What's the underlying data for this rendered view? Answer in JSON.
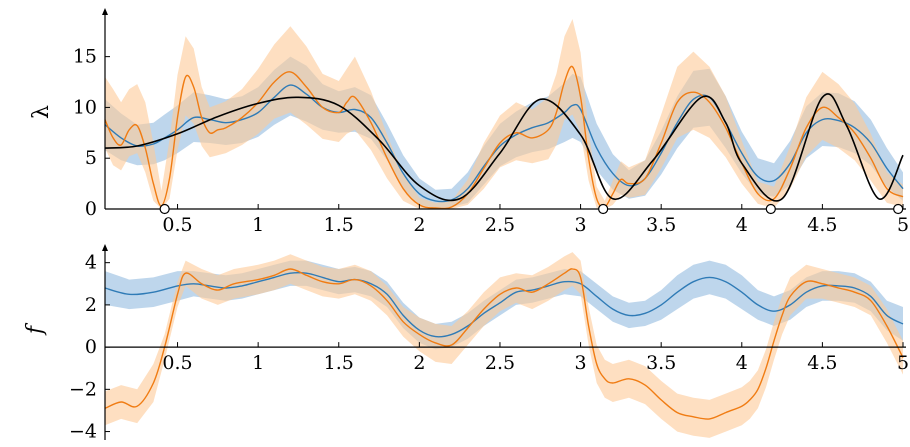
{
  "chart_data": [
    {
      "type": "line",
      "ylabel": "λ",
      "xlim": [
        0.05,
        5.0
      ],
      "ylim": [
        0,
        19
      ],
      "x_ticks": [
        "0.5",
        "1",
        "1.5",
        "2",
        "2.5",
        "3",
        "3.5",
        "4",
        "4.5",
        "5"
      ],
      "y_ticks": [
        "0",
        "5",
        "10",
        "15"
      ],
      "grid": false,
      "series": [
        {
          "role": "model-1-mean",
          "color": "#2f7bb6",
          "band_color": "#a8c8e6",
          "x": [
            0.05,
            0.15,
            0.25,
            0.35,
            0.42,
            0.5,
            0.6,
            0.7,
            0.8,
            0.9,
            1.0,
            1.1,
            1.2,
            1.3,
            1.4,
            1.5,
            1.6,
            1.7,
            1.8,
            1.9,
            2.0,
            2.1,
            2.2,
            2.3,
            2.4,
            2.5,
            2.6,
            2.7,
            2.8,
            2.9,
            2.95,
            3.0,
            3.1,
            3.2,
            3.3,
            3.4,
            3.5,
            3.6,
            3.7,
            3.8,
            3.9,
            4.0,
            4.1,
            4.2,
            4.3,
            4.4,
            4.5,
            4.6,
            4.7,
            4.8,
            4.9,
            5.0
          ],
          "y": [
            8.3,
            7.0,
            6.2,
            6.4,
            7.0,
            7.8,
            9.0,
            8.8,
            8.5,
            8.8,
            9.5,
            11.0,
            12.2,
            11.3,
            10.0,
            9.5,
            9.8,
            9.0,
            6.5,
            3.5,
            1.5,
            0.8,
            0.9,
            2.0,
            4.2,
            6.2,
            7.3,
            8.0,
            8.5,
            9.5,
            10.2,
            9.8,
            6.0,
            3.5,
            2.3,
            3.0,
            5.5,
            8.5,
            10.8,
            11.0,
            8.5,
            5.5,
            3.2,
            2.8,
            4.5,
            7.5,
            8.8,
            8.7,
            8.0,
            6.5,
            4.0,
            2.0
          ],
          "band_lower": [
            5.8,
            4.8,
            4.3,
            4.4,
            4.8,
            5.5,
            6.6,
            6.5,
            6.3,
            6.5,
            7.1,
            8.3,
            9.2,
            8.6,
            7.8,
            7.5,
            7.6,
            6.9,
            4.8,
            2.0,
            0.4,
            0.1,
            0.2,
            0.6,
            2.4,
            4.2,
            5.1,
            5.6,
            5.9,
            6.6,
            7.0,
            6.6,
            3.8,
            1.9,
            1.0,
            1.3,
            3.4,
            6.0,
            8.0,
            8.2,
            6.0,
            3.5,
            1.5,
            1.2,
            2.4,
            5.0,
            6.2,
            6.1,
            5.5,
            4.3,
            2.2,
            0.8
          ],
          "band_upper": [
            10.8,
            9.4,
            8.3,
            8.5,
            9.3,
            10.2,
            11.5,
            11.2,
            10.8,
            11.1,
            12.0,
            13.7,
            15.0,
            14.1,
            12.3,
            11.6,
            12.0,
            11.2,
            8.4,
            5.3,
            3.0,
            1.9,
            2.0,
            3.6,
            6.2,
            8.4,
            9.6,
            10.5,
            11.1,
            12.4,
            13.3,
            13.0,
            8.4,
            5.4,
            3.8,
            4.8,
            7.7,
            11.1,
            13.6,
            13.8,
            11.1,
            7.6,
            5.0,
            4.5,
            6.7,
            10.1,
            11.5,
            11.4,
            10.6,
            8.8,
            6.0,
            3.6
          ]
        },
        {
          "role": "model-2-mean",
          "color": "#f07c13",
          "band_color": "#fdc998",
          "x": [
            0.05,
            0.1,
            0.15,
            0.2,
            0.25,
            0.3,
            0.35,
            0.4,
            0.45,
            0.5,
            0.55,
            0.6,
            0.65,
            0.7,
            0.75,
            0.8,
            0.9,
            1.0,
            1.1,
            1.2,
            1.3,
            1.4,
            1.5,
            1.55,
            1.6,
            1.7,
            1.8,
            1.9,
            2.0,
            2.1,
            2.2,
            2.3,
            2.4,
            2.5,
            2.6,
            2.7,
            2.8,
            2.85,
            2.9,
            2.95,
            3.0,
            3.05,
            3.1,
            3.15,
            3.2,
            3.25,
            3.3,
            3.4,
            3.5,
            3.6,
            3.7,
            3.8,
            3.9,
            4.0,
            4.1,
            4.2,
            4.3,
            4.4,
            4.5,
            4.6,
            4.7,
            4.8,
            4.9,
            5.0
          ],
          "y": [
            8.8,
            7.0,
            6.3,
            7.8,
            8.2,
            6.0,
            2.5,
            0.3,
            3.0,
            9.0,
            13.0,
            12.0,
            9.0,
            7.5,
            7.8,
            8.0,
            9.0,
            10.5,
            12.5,
            13.5,
            12.0,
            10.0,
            9.5,
            10.5,
            11.0,
            8.5,
            5.0,
            2.0,
            0.4,
            0.1,
            0.2,
            1.5,
            4.0,
            6.5,
            7.5,
            7.0,
            7.8,
            9.5,
            12.5,
            14.0,
            11.0,
            5.0,
            1.0,
            0.2,
            1.5,
            2.9,
            2.5,
            3.0,
            6.5,
            10.5,
            11.5,
            10.5,
            8.0,
            4.5,
            1.5,
            1.0,
            4.0,
            8.0,
            10.0,
            9.0,
            7.5,
            5.0,
            2.0,
            1.2
          ],
          "band_lower": [
            6.0,
            4.3,
            3.8,
            5.2,
            5.5,
            3.6,
            0.8,
            0.0,
            1.0,
            5.8,
            9.2,
            8.4,
            6.2,
            5.1,
            5.3,
            5.5,
            6.3,
            7.4,
            8.9,
            9.5,
            8.3,
            6.9,
            6.6,
            7.4,
            7.8,
            5.8,
            3.0,
            0.8,
            0.0,
            0.0,
            0.0,
            0.4,
            2.0,
            4.1,
            4.8,
            4.5,
            4.9,
            6.3,
            8.8,
            9.3,
            7.5,
            2.8,
            0.1,
            0.0,
            0.4,
            1.4,
            1.1,
            1.4,
            4.0,
            7.0,
            7.8,
            7.0,
            5.1,
            2.5,
            0.5,
            0.1,
            2.0,
            5.2,
            6.8,
            6.0,
            4.8,
            2.8,
            0.6,
            0.2
          ],
          "band_upper": [
            13.0,
            11.8,
            10.5,
            11.8,
            12.3,
            10.5,
            6.5,
            1.8,
            6.8,
            13.2,
            17.0,
            15.8,
            12.0,
            10.0,
            10.3,
            10.6,
            11.8,
            13.8,
            16.2,
            18.0,
            16.0,
            13.3,
            12.6,
            13.8,
            15.0,
            11.6,
            7.3,
            3.5,
            1.1,
            0.6,
            0.8,
            2.9,
            6.5,
            9.2,
            10.5,
            9.8,
            11.0,
            13.3,
            17.0,
            18.7,
            15.4,
            7.7,
            2.2,
            0.8,
            2.8,
            4.7,
            4.1,
            4.8,
            9.3,
            14.0,
            15.5,
            14.0,
            11.1,
            6.7,
            2.7,
            2.2,
            6.2,
            11.0,
            13.5,
            12.3,
            10.4,
            7.4,
            3.6,
            2.4
          ]
        },
        {
          "role": "true-function",
          "color": "#000000",
          "x": [
            0.05,
            0.25,
            0.5,
            0.75,
            1.0,
            1.25,
            1.5,
            1.75,
            2.0,
            2.25,
            2.5,
            2.75,
            3.0,
            3.2,
            3.45,
            3.75,
            3.9,
            4.0,
            4.25,
            4.5,
            4.65,
            4.85,
            5.0
          ],
          "y": [
            6.0,
            6.2,
            7.4,
            9.1,
            10.4,
            11.0,
            10.2,
            6.8,
            2.3,
            1.0,
            5.5,
            10.8,
            7.3,
            1.0,
            4.8,
            11.0,
            8.5,
            4.5,
            1.0,
            11.0,
            8.2,
            1.0,
            5.3
          ]
        }
      ],
      "markers": [
        {
          "x": 0.42,
          "y": 0
        },
        {
          "x": 3.14,
          "y": 0
        },
        {
          "x": 4.18,
          "y": 0
        },
        {
          "x": 4.97,
          "y": 0
        }
      ]
    },
    {
      "type": "line",
      "ylabel": "f",
      "xlim": [
        0.05,
        5.0
      ],
      "ylim": [
        -4.4,
        4.6
      ],
      "x_ticks": [
        "0.5",
        "1",
        "1.5",
        "2",
        "2.5",
        "3",
        "3.5",
        "4",
        "4.5",
        "5"
      ],
      "y_ticks": [
        "−4",
        "−2",
        "0",
        "2",
        "4"
      ],
      "grid": false,
      "series": [
        {
          "role": "model-1-mean",
          "color": "#2f7bb6",
          "band_color": "#a8c8e6",
          "x": [
            0.05,
            0.2,
            0.35,
            0.5,
            0.6,
            0.7,
            0.8,
            0.9,
            1.0,
            1.1,
            1.2,
            1.3,
            1.4,
            1.5,
            1.6,
            1.7,
            1.8,
            1.9,
            2.0,
            2.1,
            2.2,
            2.3,
            2.4,
            2.5,
            2.6,
            2.7,
            2.8,
            2.9,
            3.0,
            3.1,
            3.2,
            3.3,
            3.4,
            3.5,
            3.6,
            3.7,
            3.8,
            3.9,
            4.0,
            4.1,
            4.2,
            4.3,
            4.4,
            4.5,
            4.6,
            4.7,
            4.8,
            4.9,
            5.0
          ],
          "y": [
            2.8,
            2.5,
            2.6,
            2.9,
            3.0,
            2.9,
            2.8,
            2.9,
            3.1,
            3.3,
            3.5,
            3.5,
            3.3,
            3.1,
            3.2,
            3.0,
            2.5,
            1.5,
            0.8,
            0.5,
            0.6,
            1.0,
            1.6,
            2.1,
            2.6,
            2.7,
            2.9,
            3.1,
            3.0,
            2.4,
            1.8,
            1.5,
            1.6,
            2.0,
            2.6,
            3.1,
            3.3,
            3.1,
            2.6,
            2.0,
            1.7,
            2.0,
            2.6,
            2.9,
            2.9,
            2.8,
            2.4,
            1.5,
            1.1
          ],
          "band_lower": [
            2.0,
            1.8,
            1.9,
            2.2,
            2.4,
            2.3,
            2.2,
            2.3,
            2.5,
            2.7,
            2.9,
            2.9,
            2.7,
            2.5,
            2.6,
            2.4,
            1.9,
            0.9,
            0.2,
            -0.1,
            0.0,
            0.4,
            1.0,
            1.5,
            2.0,
            2.1,
            2.3,
            2.5,
            2.4,
            1.8,
            1.2,
            0.9,
            1.0,
            1.3,
            1.8,
            2.3,
            2.5,
            2.3,
            1.8,
            1.3,
            1.0,
            1.3,
            1.9,
            2.2,
            2.2,
            2.1,
            1.7,
            0.8,
            0.3
          ],
          "band_upper": [
            3.6,
            3.2,
            3.3,
            3.6,
            3.6,
            3.5,
            3.4,
            3.5,
            3.7,
            3.9,
            4.1,
            4.1,
            3.9,
            3.7,
            3.8,
            3.6,
            3.1,
            2.1,
            1.4,
            1.1,
            1.2,
            1.6,
            2.2,
            2.7,
            3.2,
            3.3,
            3.5,
            3.7,
            3.6,
            3.0,
            2.4,
            2.1,
            2.2,
            2.7,
            3.4,
            3.9,
            4.1,
            3.9,
            3.4,
            2.7,
            2.4,
            2.7,
            3.3,
            3.6,
            3.6,
            3.5,
            3.1,
            2.2,
            1.9
          ]
        },
        {
          "role": "model-2-mean",
          "color": "#f07c13",
          "band_color": "#fdc998",
          "x": [
            0.05,
            0.15,
            0.25,
            0.35,
            0.42,
            0.5,
            0.55,
            0.65,
            0.75,
            0.85,
            1.0,
            1.1,
            1.2,
            1.3,
            1.4,
            1.5,
            1.6,
            1.7,
            1.8,
            1.9,
            2.0,
            2.1,
            2.2,
            2.3,
            2.4,
            2.5,
            2.6,
            2.7,
            2.8,
            2.9,
            2.95,
            3.0,
            3.05,
            3.1,
            3.15,
            3.2,
            3.3,
            3.4,
            3.5,
            3.6,
            3.7,
            3.8,
            3.9,
            4.0,
            4.05,
            4.1,
            4.15,
            4.2,
            4.25,
            4.3,
            4.4,
            4.5,
            4.6,
            4.7,
            4.8,
            4.9,
            5.0
          ],
          "y": [
            -2.9,
            -2.6,
            -2.8,
            -1.7,
            0.0,
            2.5,
            3.5,
            3.0,
            2.7,
            3.0,
            3.2,
            3.4,
            3.7,
            3.4,
            3.1,
            3.0,
            3.2,
            2.9,
            2.2,
            1.2,
            0.6,
            0.2,
            0.1,
            0.9,
            1.8,
            2.5,
            2.8,
            2.6,
            3.0,
            3.5,
            3.7,
            3.3,
            1.0,
            -0.8,
            -1.5,
            -1.7,
            -1.5,
            -1.8,
            -2.5,
            -3.1,
            -3.3,
            -3.4,
            -3.1,
            -2.8,
            -2.5,
            -2.0,
            -1.0,
            0.3,
            1.5,
            2.4,
            3.1,
            3.0,
            2.8,
            2.6,
            2.2,
            1.0,
            -0.5
          ],
          "band_lower": [
            -3.7,
            -3.4,
            -3.6,
            -2.6,
            -0.6,
            1.9,
            2.9,
            2.3,
            2.0,
            2.3,
            2.5,
            2.7,
            3.0,
            2.7,
            2.4,
            2.3,
            2.5,
            2.2,
            1.5,
            0.5,
            -0.2,
            -0.7,
            -0.8,
            0.1,
            1.0,
            1.7,
            2.1,
            1.8,
            2.2,
            2.7,
            2.9,
            2.5,
            0.1,
            -1.7,
            -2.4,
            -2.6,
            -2.4,
            -2.7,
            -3.4,
            -4.0,
            -4.2,
            -4.3,
            -4.0,
            -3.7,
            -3.4,
            -2.9,
            -1.9,
            -0.6,
            0.6,
            1.5,
            2.3,
            2.3,
            2.1,
            1.9,
            1.5,
            0.2,
            -1.3
          ],
          "band_upper": [
            -2.1,
            -1.8,
            -2.0,
            -0.8,
            0.6,
            3.1,
            4.1,
            3.7,
            3.4,
            3.7,
            3.9,
            4.1,
            4.4,
            4.1,
            3.8,
            3.7,
            3.9,
            3.6,
            2.9,
            1.9,
            1.4,
            1.1,
            1.0,
            1.7,
            2.6,
            3.3,
            3.5,
            3.4,
            3.8,
            4.3,
            4.5,
            4.1,
            1.9,
            0.1,
            -0.6,
            -0.8,
            -0.6,
            -0.9,
            -1.6,
            -2.2,
            -2.4,
            -2.5,
            -2.2,
            -1.9,
            -1.6,
            -1.1,
            -0.1,
            1.2,
            2.4,
            3.3,
            3.9,
            3.7,
            3.5,
            3.3,
            2.9,
            1.8,
            0.3
          ]
        }
      ]
    }
  ]
}
